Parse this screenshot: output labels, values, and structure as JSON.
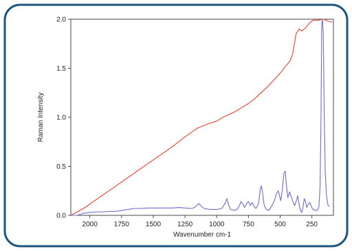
{
  "chart_data": {
    "type": "line",
    "xlabel": "Wavenumber cm-1",
    "ylabel": "Raman Intensity",
    "xlim": [
      2150,
      80
    ],
    "ylim": [
      0,
      2.0
    ],
    "x_reversed": true,
    "grid": false,
    "legend": "none",
    "x_ticks": [
      {
        "value": 2000,
        "label": "2000"
      },
      {
        "value": 1750,
        "label": "1750"
      },
      {
        "value": 1500,
        "label": "1500"
      },
      {
        "value": 1250,
        "label": "1250"
      },
      {
        "value": 1000,
        "label": "1000"
      },
      {
        "value": 750,
        "label": "750"
      },
      {
        "value": 500,
        "label": "500"
      },
      {
        "value": 250,
        "label": "250"
      }
    ],
    "y_ticks": [
      {
        "value": 0.0,
        "label": "0.0"
      },
      {
        "value": 0.5,
        "label": "0.5"
      },
      {
        "value": 1.0,
        "label": "1.0"
      },
      {
        "value": 1.5,
        "label": "1.5"
      },
      {
        "value": 2.0,
        "label": "2.0"
      }
    ],
    "series": [
      {
        "color": "#e8402a",
        "points": [
          [
            2150,
            0.0
          ],
          [
            2050,
            0.07
          ],
          [
            1950,
            0.16
          ],
          [
            1850,
            0.25
          ],
          [
            1750,
            0.34
          ],
          [
            1650,
            0.43
          ],
          [
            1550,
            0.52
          ],
          [
            1450,
            0.61
          ],
          [
            1350,
            0.7
          ],
          [
            1250,
            0.8
          ],
          [
            1150,
            0.89
          ],
          [
            1075,
            0.93
          ],
          [
            1000,
            0.96
          ],
          [
            950,
            1.0
          ],
          [
            900,
            1.03
          ],
          [
            850,
            1.06
          ],
          [
            800,
            1.1
          ],
          [
            750,
            1.14
          ],
          [
            700,
            1.19
          ],
          [
            650,
            1.25
          ],
          [
            600,
            1.31
          ],
          [
            550,
            1.38
          ],
          [
            500,
            1.45
          ],
          [
            450,
            1.53
          ],
          [
            420,
            1.58
          ],
          [
            400,
            1.65
          ],
          [
            375,
            1.85
          ],
          [
            350,
            1.9
          ],
          [
            330,
            1.88
          ],
          [
            300,
            1.91
          ],
          [
            270,
            1.96
          ],
          [
            240,
            1.99
          ],
          [
            200,
            1.99
          ],
          [
            160,
            2.0
          ],
          [
            120,
            1.98
          ],
          [
            90,
            1.97
          ]
        ]
      },
      {
        "color": "#6b6bd0",
        "points": [
          [
            2150,
            0.0
          ],
          [
            2100,
            0.0
          ],
          [
            2050,
            0.02
          ],
          [
            2000,
            0.03
          ],
          [
            1950,
            0.035
          ],
          [
            1900,
            0.035
          ],
          [
            1850,
            0.04
          ],
          [
            1800,
            0.04
          ],
          [
            1750,
            0.05
          ],
          [
            1700,
            0.06
          ],
          [
            1650,
            0.07
          ],
          [
            1600,
            0.07
          ],
          [
            1550,
            0.075
          ],
          [
            1500,
            0.075
          ],
          [
            1450,
            0.075
          ],
          [
            1400,
            0.075
          ],
          [
            1350,
            0.075
          ],
          [
            1300,
            0.08
          ],
          [
            1250,
            0.075
          ],
          [
            1200,
            0.07
          ],
          [
            1175,
            0.08
          ],
          [
            1140,
            0.12
          ],
          [
            1120,
            0.09
          ],
          [
            1100,
            0.07
          ],
          [
            1050,
            0.06
          ],
          [
            1000,
            0.06
          ],
          [
            960,
            0.07
          ],
          [
            935,
            0.12
          ],
          [
            920,
            0.17
          ],
          [
            905,
            0.1
          ],
          [
            890,
            0.06
          ],
          [
            860,
            0.05
          ],
          [
            840,
            0.06
          ],
          [
            820,
            0.1
          ],
          [
            810,
            0.14
          ],
          [
            795,
            0.12
          ],
          [
            780,
            0.08
          ],
          [
            765,
            0.12
          ],
          [
            750,
            0.14
          ],
          [
            735,
            0.1
          ],
          [
            720,
            0.13
          ],
          [
            705,
            0.09
          ],
          [
            690,
            0.07
          ],
          [
            670,
            0.12
          ],
          [
            655,
            0.28
          ],
          [
            648,
            0.3
          ],
          [
            640,
            0.24
          ],
          [
            625,
            0.1
          ],
          [
            610,
            0.06
          ],
          [
            590,
            0.05
          ],
          [
            565,
            0.1
          ],
          [
            545,
            0.15
          ],
          [
            530,
            0.22
          ],
          [
            515,
            0.25
          ],
          [
            505,
            0.2
          ],
          [
            495,
            0.15
          ],
          [
            485,
            0.24
          ],
          [
            470,
            0.43
          ],
          [
            460,
            0.45
          ],
          [
            450,
            0.3
          ],
          [
            440,
            0.18
          ],
          [
            425,
            0.24
          ],
          [
            415,
            0.2
          ],
          [
            400,
            0.14
          ],
          [
            385,
            0.1
          ],
          [
            370,
            0.16
          ],
          [
            362,
            0.2
          ],
          [
            352,
            0.12
          ],
          [
            340,
            0.05
          ],
          [
            330,
            0.03
          ],
          [
            320,
            0.08
          ],
          [
            310,
            0.17
          ],
          [
            300,
            0.14
          ],
          [
            290,
            0.08
          ],
          [
            275,
            0.12
          ],
          [
            265,
            0.13
          ],
          [
            255,
            0.09
          ],
          [
            240,
            0.06
          ],
          [
            225,
            0.05
          ],
          [
            210,
            0.05
          ],
          [
            195,
            0.08
          ],
          [
            185,
            0.3
          ],
          [
            178,
            1.0
          ],
          [
            172,
            1.95
          ],
          [
            166,
            2.0
          ],
          [
            160,
            1.85
          ],
          [
            152,
            1.0
          ],
          [
            145,
            0.45
          ],
          [
            135,
            0.2
          ],
          [
            122,
            0.1
          ],
          [
            110,
            0.09
          ]
        ]
      }
    ]
  }
}
